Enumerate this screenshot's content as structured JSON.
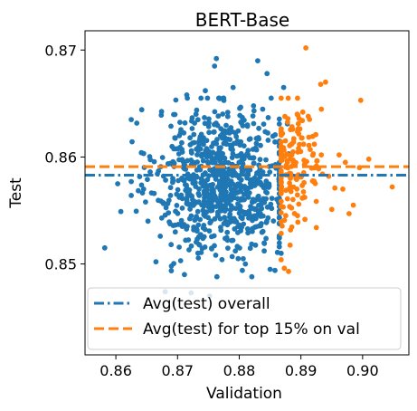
{
  "chart_data": {
    "type": "scatter",
    "title": "BERT-Base",
    "xlabel": "Validation",
    "ylabel": "Test",
    "xlim": [
      0.855,
      0.9075
    ],
    "ylim": [
      0.8415,
      0.8718
    ],
    "xticks": [
      0.86,
      0.87,
      0.88,
      0.89,
      0.9
    ],
    "xtick_labels": [
      "0.86",
      "0.87",
      "0.88",
      "0.89",
      "0.90"
    ],
    "yticks": [
      0.85,
      0.86,
      0.87
    ],
    "ytick_labels": [
      "0.85",
      "0.86",
      "0.87"
    ],
    "grid": false,
    "legend_placement": "lower-right",
    "series": [
      {
        "color": "#1f77b4",
        "points": [
          [
            0.8582,
            0.8515
          ],
          [
            0.8603,
            0.8575
          ],
          [
            0.8608,
            0.8549
          ],
          [
            0.8625,
            0.8635
          ],
          [
            0.8645,
            0.857
          ],
          [
            0.8652,
            0.854
          ],
          [
            0.8665,
            0.8502
          ],
          [
            0.8672,
            0.8526
          ],
          [
            0.868,
            0.8474
          ],
          [
            0.869,
            0.8498
          ],
          [
            0.8703,
            0.862
          ],
          [
            0.8705,
            0.8503
          ],
          [
            0.8715,
            0.8658
          ],
          [
            0.8722,
            0.8473
          ],
          [
            0.873,
            0.864
          ],
          [
            0.8745,
            0.8662
          ],
          [
            0.8752,
            0.847
          ],
          [
            0.876,
            0.8685
          ],
          [
            0.8763,
            0.8692
          ],
          [
            0.8772,
            0.8504
          ],
          [
            0.879,
            0.8665
          ],
          [
            0.8805,
            0.8494
          ],
          [
            0.881,
            0.85
          ],
          [
            0.883,
            0.869
          ],
          [
            0.8845,
            0.8678
          ],
          [
            0.885,
            0.8495
          ],
          [
            0.8858,
            0.8494
          ],
          [
            0.8868,
            0.851
          ],
          [
            0.8872,
            0.8665
          ],
          [
            0.8878,
            0.8631
          ],
          [
            0.888,
            0.8603
          ],
          [
            0.8882,
            0.857
          ]
        ],
        "cloud": {
          "count": 820,
          "x_mean": 0.8775,
          "x_sd": 0.0055,
          "x_min": 0.8625,
          "x_max": 0.8865,
          "y_mean": 0.8578,
          "y_sd": 0.0034,
          "y_min": 0.8488,
          "y_max": 0.8655
        }
      },
      {
        "color": "#ff7f0e",
        "points": [
          [
            0.8873,
            0.8496
          ],
          [
            0.888,
            0.8493
          ],
          [
            0.8885,
            0.8612
          ],
          [
            0.8888,
            0.8614
          ],
          [
            0.8893,
            0.8579
          ],
          [
            0.8895,
            0.8639
          ],
          [
            0.8903,
            0.8642
          ],
          [
            0.8905,
            0.8597
          ],
          [
            0.8908,
            0.8702
          ],
          [
            0.8912,
            0.8638
          ],
          [
            0.8915,
            0.8607
          ],
          [
            0.892,
            0.8603
          ],
          [
            0.8925,
            0.8534
          ],
          [
            0.8932,
            0.8668
          ],
          [
            0.8933,
            0.8602
          ],
          [
            0.894,
            0.867
          ],
          [
            0.8945,
            0.8582
          ],
          [
            0.895,
            0.8551
          ],
          [
            0.8955,
            0.8571
          ],
          [
            0.8962,
            0.8602
          ],
          [
            0.8968,
            0.857
          ],
          [
            0.8972,
            0.8595
          ],
          [
            0.8978,
            0.8547
          ],
          [
            0.8985,
            0.8555
          ],
          [
            0.8995,
            0.859
          ],
          [
            0.8997,
            0.8653
          ],
          [
            0.901,
            0.8598
          ],
          [
            0.9048,
            0.8572
          ]
        ],
        "cloud": {
          "count": 155,
          "x_mean": 0.8885,
          "x_sd": 0.0026,
          "x_min": 0.8868,
          "x_max": 0.8935,
          "y_mean": 0.8588,
          "y_sd": 0.003,
          "y_min": 0.85,
          "y_max": 0.8655
        }
      }
    ],
    "reference_lines": [
      {
        "label": "Avg(test) overall",
        "y": 0.8583,
        "color": "#1f77b4",
        "style": "dash-dot"
      },
      {
        "label": "Avg(test) for top 15% on val",
        "y": 0.8591,
        "color": "#ff7f0e",
        "style": "dashed"
      }
    ]
  }
}
